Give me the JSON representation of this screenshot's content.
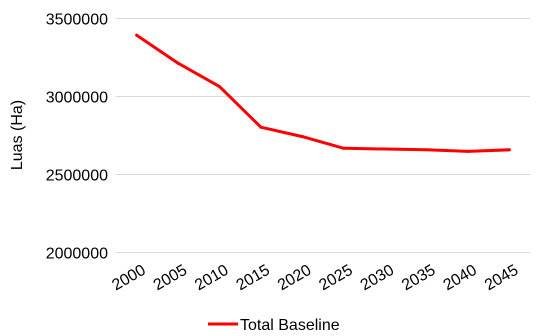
{
  "chart_data": {
    "type": "line",
    "title": "",
    "xlabel": "",
    "ylabel": "Luas (Ha)",
    "ylim": [
      2000000,
      3500000
    ],
    "y_ticks": [
      2000000,
      2500000,
      3000000,
      3500000
    ],
    "y_tick_labels": [
      "2000000",
      "2500000",
      "3000000",
      "3500000"
    ],
    "categories": [
      "2000",
      "2005",
      "2010",
      "2015",
      "2020",
      "2025",
      "2030",
      "2035",
      "2040",
      "2045"
    ],
    "series": [
      {
        "name": "Total Baseline",
        "color": "#ff0000",
        "values": [
          3390000,
          3210000,
          3060000,
          2800000,
          2740000,
          2665000,
          2660000,
          2655000,
          2645000,
          2655000
        ]
      }
    ],
    "grid": true,
    "legend_position": "bottom"
  }
}
